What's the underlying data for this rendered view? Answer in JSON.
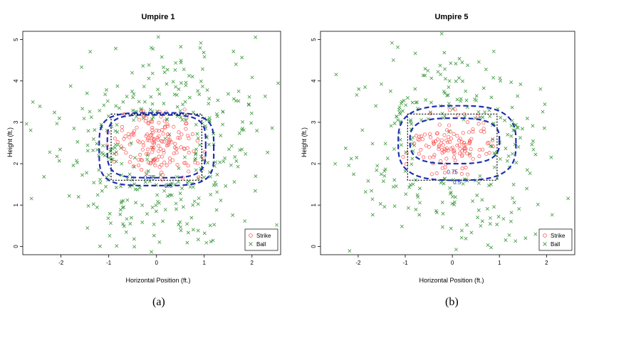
{
  "colors": {
    "strike": "#ff4d4d",
    "ball": "#3c9a3c",
    "contour": "#1f2fb0",
    "zone": "#000000",
    "axis": "#000000"
  },
  "legend_labels": [
    "Strike",
    "Ball"
  ],
  "captions": [
    "(a)",
    "(b)"
  ],
  "chart_data": [
    {
      "type": "scatter",
      "title": "Umpire 1",
      "xlabel": "Horizontal Position (ft.)",
      "ylabel": "Height (ft.)",
      "xlim": [
        -2.8,
        2.6
      ],
      "ylim": [
        -0.2,
        5.2
      ],
      "xticks": [
        -2,
        -1,
        0,
        1,
        2
      ],
      "yticks": [
        0,
        1,
        2,
        3,
        4,
        5
      ],
      "legend_position": "bottom-right",
      "series": [
        {
          "name": "Strike",
          "marker": "circle",
          "count": 180,
          "x_mean": 0.0,
          "x_sd": 0.45,
          "y_mean": 2.45,
          "y_sd": 0.45
        },
        {
          "name": "Ball",
          "marker": "x",
          "count": 480,
          "x_mean": 0.0,
          "x_sd": 1.0,
          "y_mean": 2.4,
          "y_sd": 1.15
        }
      ],
      "strike_zone": {
        "x": [
          -0.95,
          0.95
        ],
        "y": [
          1.6,
          3.2
        ]
      },
      "contours": [
        {
          "label": "0.75",
          "level": 0.75,
          "center": [
            0.0,
            2.42
          ],
          "rx": 1.03,
          "ry": 0.76,
          "rounding": 4.0,
          "label_pos": [
            -0.15,
            1.67
          ]
        },
        {
          "label": "0.5",
          "level": 0.5,
          "center": [
            0.0,
            2.35
          ],
          "rx": 1.2,
          "ry": 0.88,
          "rounding": 4.0,
          "label_pos": [
            0.25,
            1.47
          ]
        }
      ]
    },
    {
      "type": "scatter",
      "title": "Umpire 5",
      "xlabel": "Horizontal Position (ft.)",
      "ylabel": "Height (ft.)",
      "xlim": [
        -2.8,
        2.6
      ],
      "ylim": [
        -0.2,
        5.2
      ],
      "xticks": [
        -2,
        -1,
        0,
        1,
        2
      ],
      "yticks": [
        0,
        1,
        2,
        3,
        4,
        5
      ],
      "legend_position": "bottom-right",
      "series": [
        {
          "name": "Strike",
          "marker": "circle",
          "count": 130,
          "x_mean": 0.0,
          "x_sd": 0.45,
          "y_mean": 2.45,
          "y_sd": 0.35
        },
        {
          "name": "Ball",
          "marker": "x",
          "count": 360,
          "x_mean": 0.0,
          "x_sd": 1.05,
          "y_mean": 2.4,
          "y_sd": 1.15
        }
      ],
      "strike_zone": {
        "x": [
          -0.95,
          0.95
        ],
        "y": [
          1.6,
          3.2
        ]
      },
      "contours": [
        {
          "label": "0.75",
          "level": 0.75,
          "center": [
            0.05,
            2.55
          ],
          "rx": 0.95,
          "ry": 0.55,
          "rounding": 3.0,
          "label_pos": [
            0.0,
            1.8
          ]
        },
        {
          "label": "0.5",
          "level": 0.5,
          "center": [
            0.1,
            2.5
          ],
          "rx": 1.25,
          "ry": 0.9,
          "rounding": 3.0,
          "label_pos": [
            0.1,
            1.55
          ]
        }
      ]
    }
  ]
}
